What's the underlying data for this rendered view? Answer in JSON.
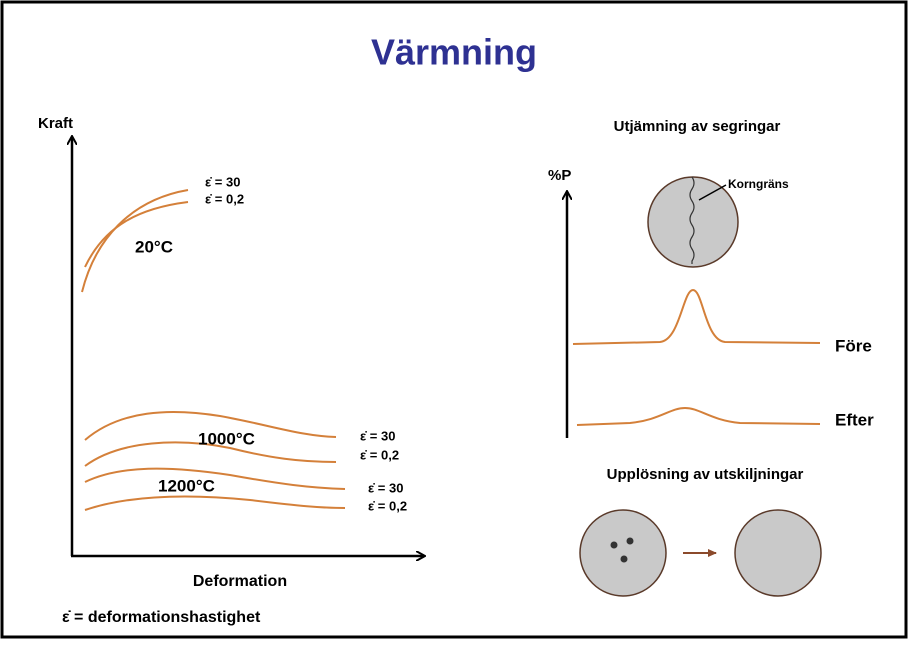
{
  "title": "Värmning",
  "left": {
    "y_axis_label": "Kraft",
    "x_axis_label": "Deformation",
    "footnote": "ε̇ = deformationshastighet",
    "groups": [
      {
        "temperature": "20°C",
        "rates": [
          "ε̇ = 30",
          "ε̇ = 0,2"
        ]
      },
      {
        "temperature": "1000°C",
        "rates": [
          "ε̇ = 30",
          "ε̇ = 0,2"
        ]
      },
      {
        "temperature": "1200°C",
        "rates": [
          "ε̇ = 30",
          "ε̇ = 0,2"
        ]
      }
    ]
  },
  "right": {
    "segregation_title": "Utjämning av segringar",
    "y_axis_label": "%P",
    "grain_boundary": "Korngräns",
    "before": "Före",
    "after": "Efter",
    "dissolution_title": "Upplösning av utskiljningar"
  }
}
